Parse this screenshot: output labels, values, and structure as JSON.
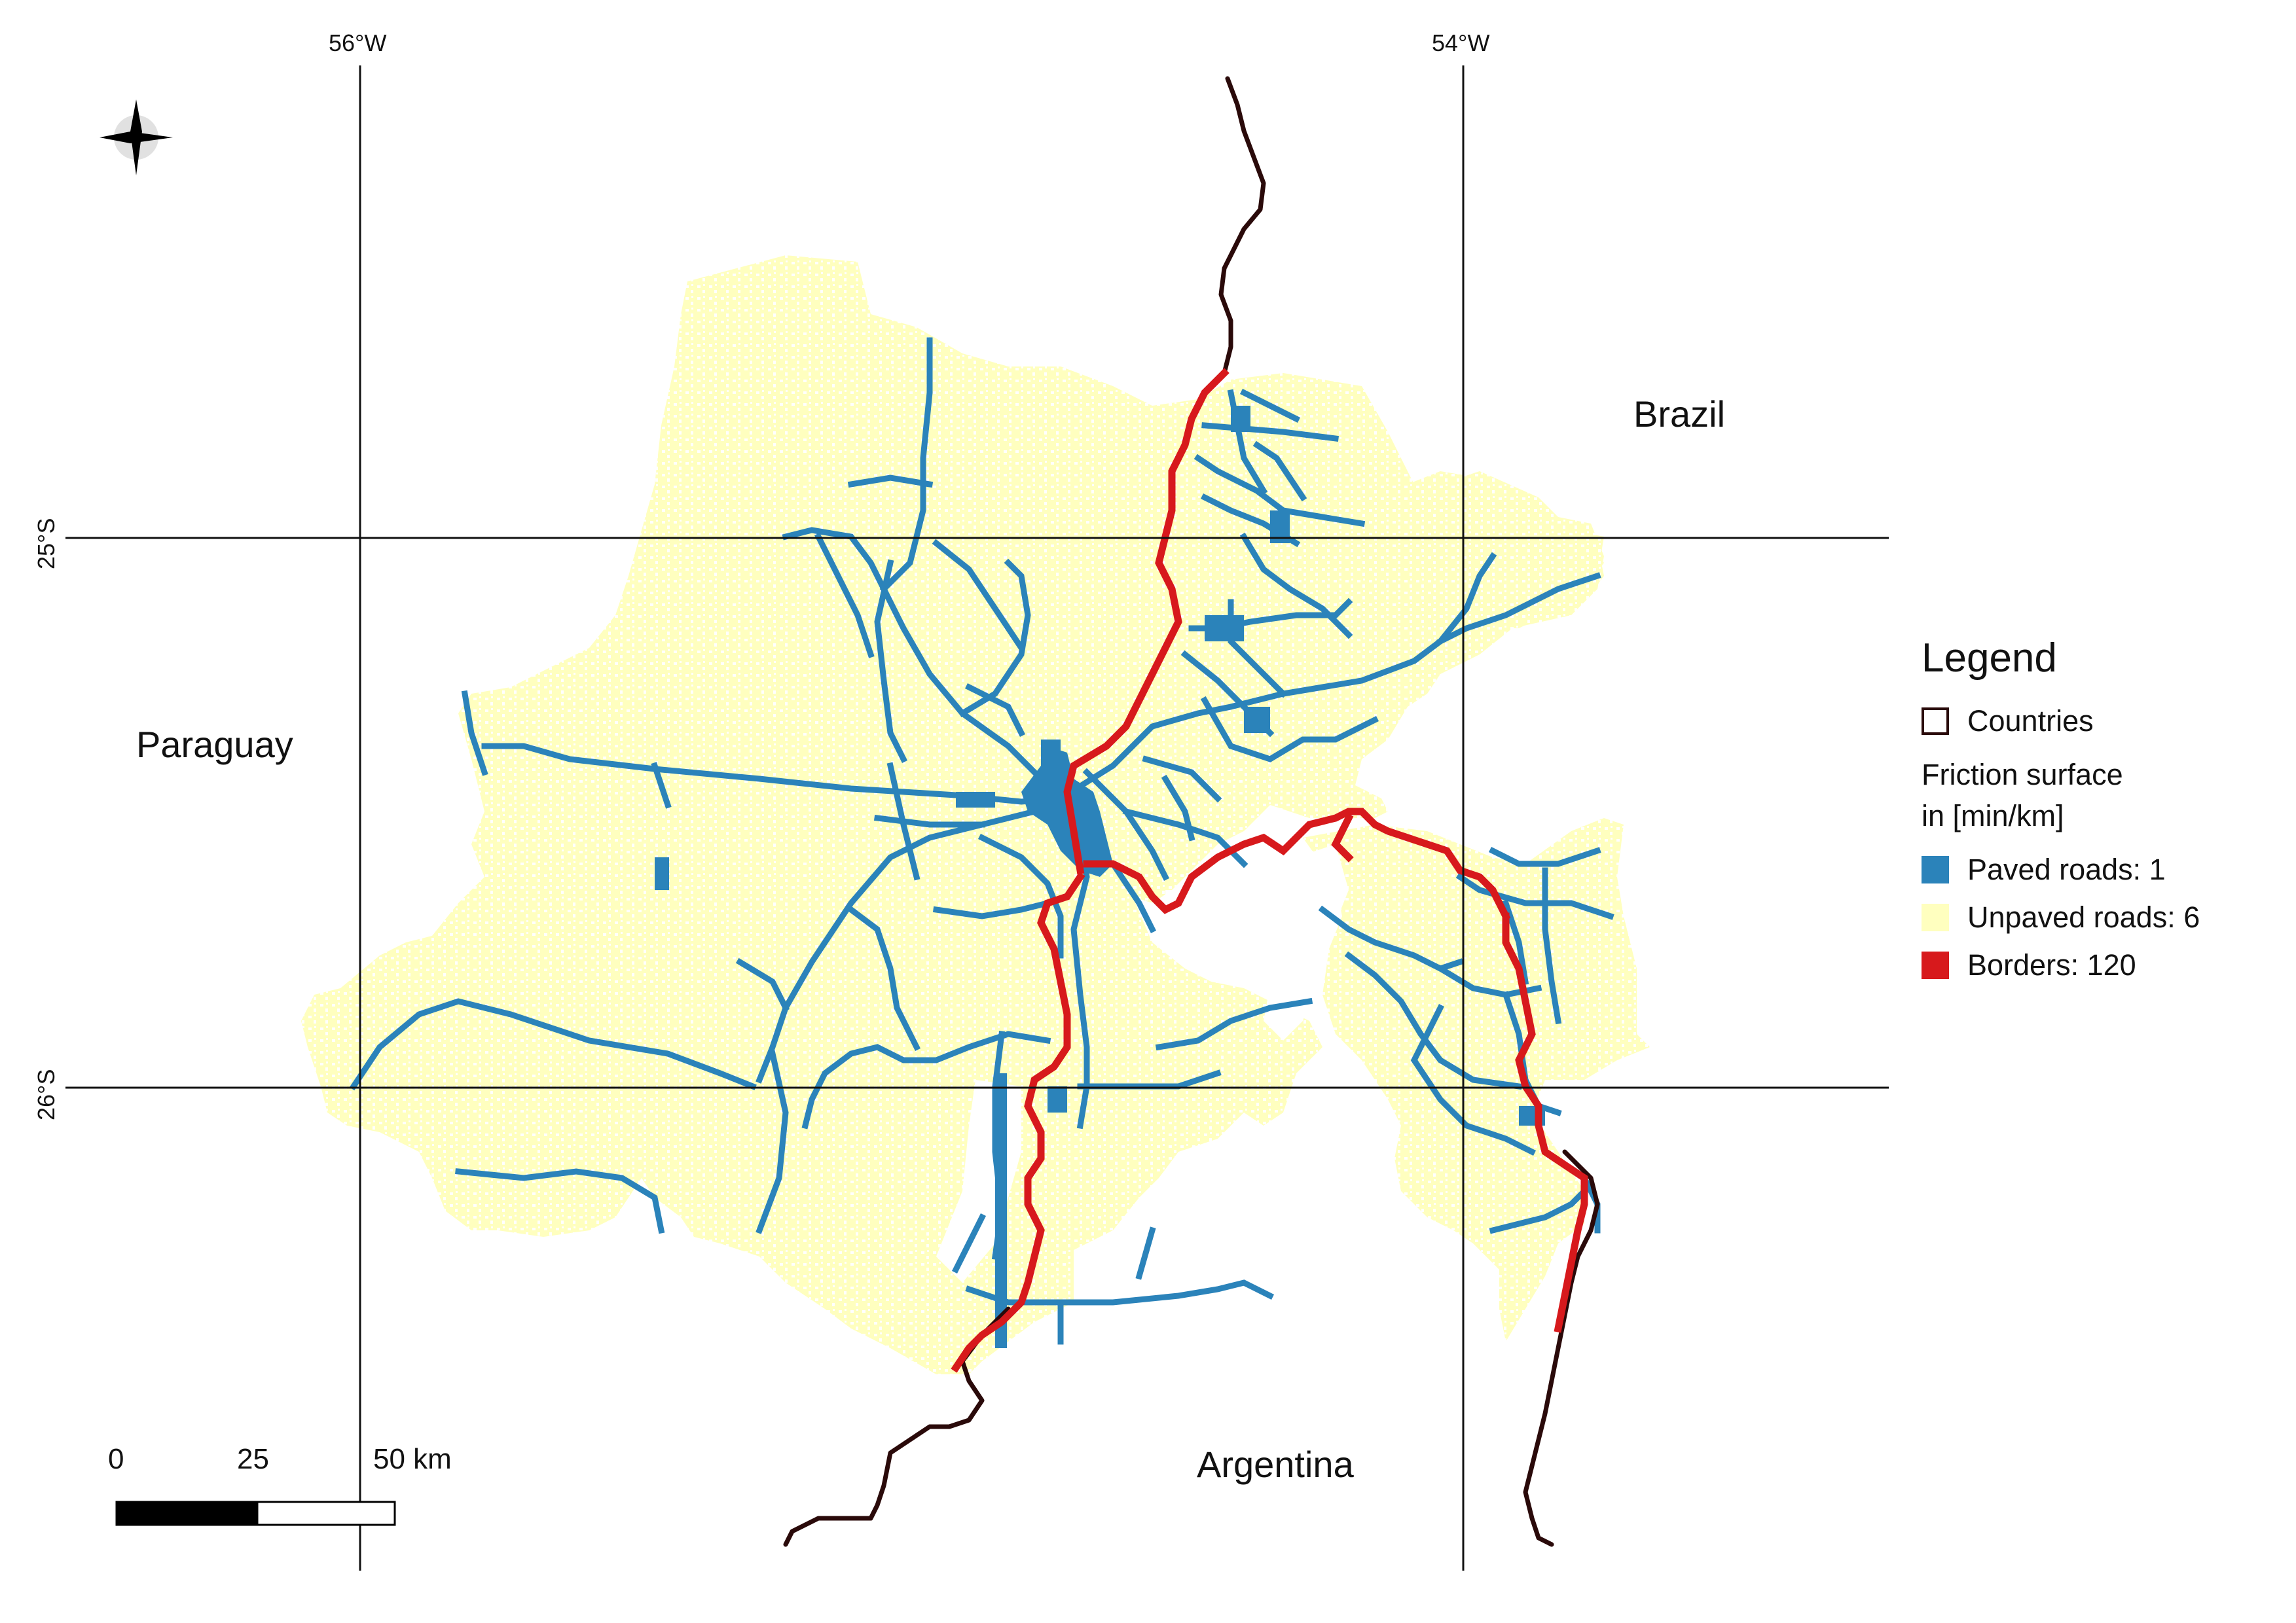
{
  "map": {
    "countries": [
      "Paraguay",
      "Brazil",
      "Argentina"
    ],
    "graticule": {
      "longitudes": [
        "56°W",
        "54°W"
      ],
      "latitudes": [
        "25°S",
        "26°S"
      ]
    },
    "colors": {
      "paved": "#2b83ba",
      "unpaved": "#ffffbf",
      "border": "#d7191c",
      "country_outline": "#2a0a0a",
      "grid": "#111111"
    },
    "north_arrow_icon": "compass-star-icon"
  },
  "legend": {
    "title": "Legend",
    "countries_label": "Countries",
    "friction_title_line1": "Friction surface",
    "friction_title_line2": "in [min/km]",
    "items": [
      {
        "label": "Paved roads: 1",
        "color": "#2b83ba"
      },
      {
        "label": "Unpaved roads: 6",
        "color": "#ffffbf"
      },
      {
        "label": "Borders: 120",
        "color": "#d7191c"
      }
    ]
  },
  "scale_bar": {
    "labels": [
      "0",
      "25",
      "50 km"
    ]
  }
}
